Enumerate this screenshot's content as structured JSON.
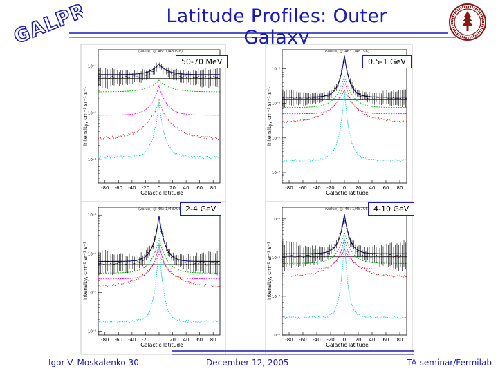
{
  "slide": {
    "title": "Latitude Profiles: Outer Galaxy",
    "logo_text": "GALPROP",
    "footer": {
      "author": "Igor V. Moskalenko 30",
      "date": "December 12, 2005",
      "venue": "TA-seminar/Fermilab"
    },
    "colors": {
      "title": "#1a1ab4",
      "rules": "#1a1ab4",
      "seal": "#8c1515",
      "total_model": "#1a1a8c",
      "pion": "#00aa00",
      "ic": "#cc2222",
      "brems": "#ee00ee",
      "bkg": "#00cccc"
    }
  },
  "chart_data": [
    {
      "type": "line",
      "energy_label": "50-70 MeV",
      "header_text": "(value) (J: 46: 1/48796)",
      "xlabel": "Galactic latitude",
      "ylabel": "intensity, cm⁻² sr⁻¹ s⁻¹",
      "x_ticks": [
        "-80",
        "-60",
        "-40",
        "-20",
        "0",
        "20",
        "40",
        "60",
        "80"
      ],
      "xlim": [
        -90,
        90
      ],
      "y_ticks": [
        {
          "label": "10⁻¹",
          "dec": 0
        },
        {
          "label": "10⁻²",
          "dec": -1
        },
        {
          "label": "10⁻³",
          "dec": -2
        },
        {
          "label": "10⁻⁴",
          "dec": -3
        }
      ],
      "ylim_decades": [
        -2.5,
        0.35
      ],
      "grid": false,
      "series": [
        {
          "name": "data",
          "peak": 0.02,
          "base": -0.25,
          "width": 14,
          "noise": 0.06
        },
        {
          "name": "total model",
          "peak": 0.05,
          "base": -0.18,
          "width": 12
        },
        {
          "name": "pi0 decay",
          "peak": -0.3,
          "base": -0.55,
          "width": 16
        },
        {
          "name": "bremsstrahlung",
          "peak": -0.42,
          "base": -1.05,
          "width": 12
        },
        {
          "name": "inverse Compton",
          "peak": -0.75,
          "base": -1.55,
          "width": 20
        },
        {
          "name": "isotropic background",
          "peak": -0.78,
          "base": -1.95,
          "width": 9
        }
      ]
    },
    {
      "type": "line",
      "energy_label": "0.5-1 GeV",
      "header_text": "(value) (J: 46: 1/48796)",
      "xlabel": "Galactic latitude",
      "ylabel": "intensity, cm⁻² sr⁻¹ s⁻¹",
      "x_ticks": [
        "-80",
        "-60",
        "-40",
        "-20",
        "0",
        "20",
        "40",
        "60",
        "80"
      ],
      "xlim": [
        -90,
        90
      ],
      "y_ticks": [
        {
          "label": "10⁻⁴",
          "dec": 0
        },
        {
          "label": "10⁻⁵",
          "dec": -1
        },
        {
          "label": "10⁻⁶",
          "dec": -2
        },
        {
          "label": "10⁻⁷",
          "dec": -3
        }
      ],
      "ylim_decades": [
        -3.3,
        0.55
      ],
      "grid": false,
      "series": [
        {
          "name": "data",
          "peak": 0.35,
          "base": -0.85,
          "width": 9,
          "noise": 0.07
        },
        {
          "name": "total model",
          "peak": 0.38,
          "base": -0.82,
          "width": 8
        },
        {
          "name": "pi0 decay",
          "peak": -0.2,
          "base": -1.12,
          "width": 12
        },
        {
          "name": "bremsstrahlung",
          "peak": -0.3,
          "base": -1.3,
          "width": 10
        },
        {
          "name": "inverse Compton",
          "peak": -0.6,
          "base": -1.55,
          "width": 22
        },
        {
          "name": "isotropic background",
          "peak": -0.65,
          "base": -2.65,
          "width": 8
        }
      ]
    },
    {
      "type": "line",
      "energy_label": "2-4 GeV",
      "header_text": "(value) (J: 46: 1/48796)",
      "xlabel": "Galactic latitude",
      "ylabel": "intensity, cm⁻² sr⁻¹ s⁻¹",
      "x_ticks": [
        "-80",
        "-60",
        "-40",
        "-20",
        "0",
        "20",
        "40",
        "60",
        "80"
      ],
      "xlim": [
        -90,
        90
      ],
      "y_ticks": [
        {
          "label": "10⁻⁵",
          "dec": 0
        },
        {
          "label": "10⁻⁶",
          "dec": -1
        },
        {
          "label": "10⁻⁷",
          "dec": -2
        },
        {
          "label": "10⁻⁸",
          "dec": -3
        }
      ],
      "ylim_decades": [
        -3.1,
        0.2
      ],
      "grid": false,
      "series": [
        {
          "name": "data",
          "peak": -0.05,
          "base": -1.25,
          "width": 10,
          "noise": 0.1
        },
        {
          "name": "total model",
          "peak": -0.02,
          "base": -1.2,
          "width": 9
        },
        {
          "name": "pi0 decay",
          "peak": -0.6,
          "base": -1.5,
          "width": 12
        },
        {
          "name": "bremsstrahlung",
          "peak": -0.75,
          "base": -1.65,
          "width": 10
        },
        {
          "name": "inverse Compton",
          "peak": -1.0,
          "base": -1.85,
          "width": 22
        },
        {
          "name": "isotropic background",
          "peak": -0.7,
          "base": -2.75,
          "width": 7
        }
      ]
    },
    {
      "type": "line",
      "energy_label": "4-10 GeV",
      "header_text": "(value) (J: 46: 1/48796)",
      "xlabel": "Galactic latitude",
      "ylabel": "intensity, cm⁻² sr⁻¹ s⁻¹",
      "x_ticks": [
        "-80",
        "-60",
        "-40",
        "-20",
        "0",
        "20",
        "40",
        "60",
        "80"
      ],
      "xlim": [
        -90,
        90
      ],
      "y_ticks": [
        {
          "label": "10⁻⁵",
          "dec": 0
        },
        {
          "label": "10⁻⁶",
          "dec": -1
        },
        {
          "label": "10⁻⁷",
          "dec": -2
        },
        {
          "label": "10⁻⁸",
          "dec": -3
        }
      ],
      "ylim_decades": [
        -3.0,
        0.3
      ],
      "grid": false,
      "series": [
        {
          "name": "data",
          "peak": 0.1,
          "base": -0.95,
          "width": 9,
          "noise": 0.12
        },
        {
          "name": "total model",
          "peak": 0.12,
          "base": -0.9,
          "width": 8
        },
        {
          "name": "pi0 decay",
          "peak": -0.35,
          "base": -1.15,
          "width": 11
        },
        {
          "name": "bremsstrahlung",
          "peak": -0.5,
          "base": -1.3,
          "width": 9
        },
        {
          "name": "inverse Compton",
          "peak": -0.8,
          "base": -1.5,
          "width": 22
        },
        {
          "name": "isotropic background",
          "peak": -0.5,
          "base": -2.55,
          "width": 6
        }
      ]
    }
  ]
}
